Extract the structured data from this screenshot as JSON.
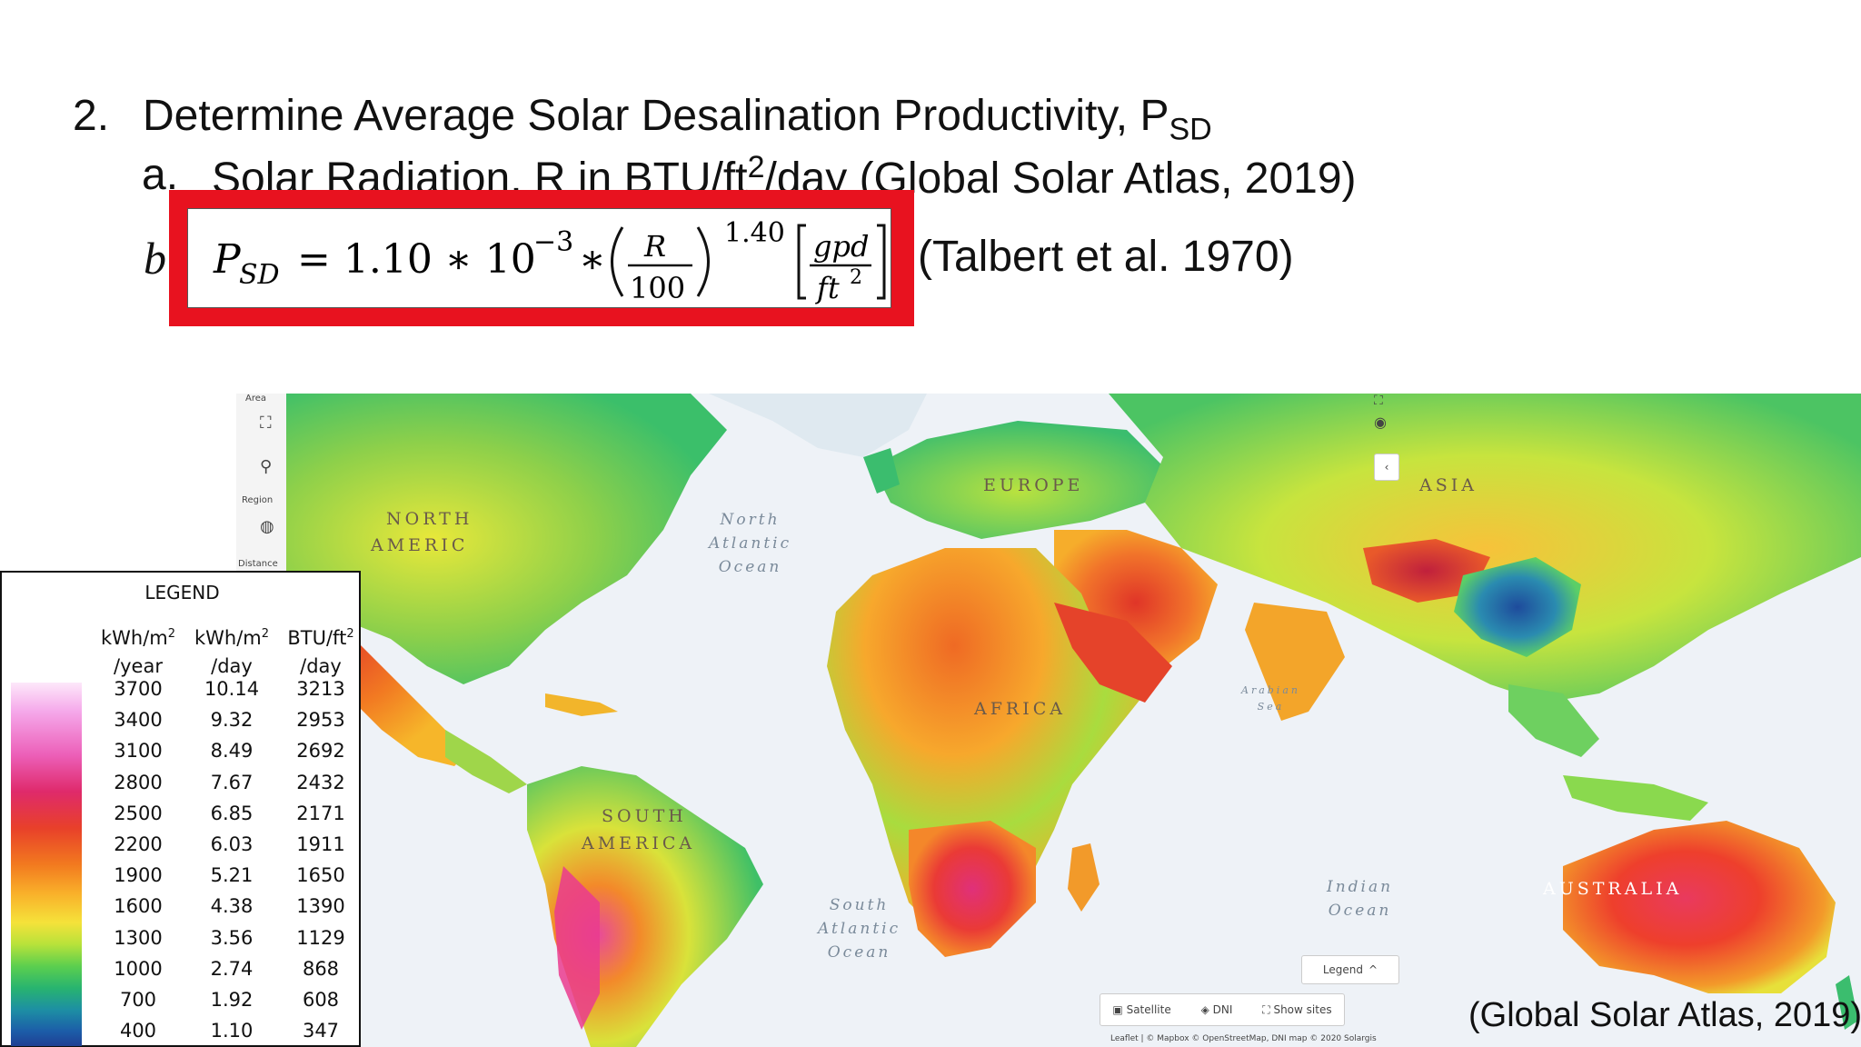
{
  "slide": {
    "item_num": "2.",
    "item_text": "Determine Average Solar Desalination Productivity, P",
    "item_sub": "SD",
    "sub_a_letter": "a.",
    "sub_a_text_1": "Solar Radiation, R in BTU/ft",
    "sub_a_sup": "2",
    "sub_a_text_2": "/day (Global Solar Atlas, 2019)",
    "sub_b_letter": "b",
    "formula_citation": "(Talbert et al. 1970)",
    "map_citation": "(Global Solar Atlas, 2019)"
  },
  "formula": {
    "lhs": "P",
    "lhs_sub": "SD",
    "coef": "= 1.10 ∗ 10",
    "exp": "−3",
    "times": "∗",
    "num": "R",
    "den": "100",
    "power": "1.40",
    "unit_num": "gpd",
    "unit_den": "ft",
    "unit_den_sup": "2"
  },
  "legend": {
    "title": "LEGEND",
    "col1_l1": "kWh/m",
    "col1_sup": "2",
    "col1_l2": "/year",
    "col2_l1": "kWh/m",
    "col2_sup": "2",
    "col2_l2": "/day",
    "col3_l1": "BTU/ft",
    "col3_sup": "2",
    "col3_l2": "/day",
    "rows": [
      {
        "year": "3700",
        "day": "10.14",
        "btu": "3213"
      },
      {
        "year": "3400",
        "day": "9.32",
        "btu": "2953"
      },
      {
        "year": "3100",
        "day": "8.49",
        "btu": "2692"
      },
      {
        "year": "2800",
        "day": "7.67",
        "btu": "2432"
      },
      {
        "year": "2500",
        "day": "6.85",
        "btu": "2171"
      },
      {
        "year": "2200",
        "day": "6.03",
        "btu": "1911"
      },
      {
        "year": "1900",
        "day": "5.21",
        "btu": "1650"
      },
      {
        "year": "1600",
        "day": "4.38",
        "btu": "1390"
      },
      {
        "year": "1300",
        "day": "3.56",
        "btu": "1129"
      },
      {
        "year": "1000",
        "day": "2.74",
        "btu": "868"
      },
      {
        "year": "700",
        "day": "1.92",
        "btu": "608"
      },
      {
        "year": "400",
        "day": "1.10",
        "btu": "347"
      }
    ]
  },
  "map": {
    "labels": {
      "north_america_1": "NORTH",
      "north_america_2": "AMERIC",
      "europe": "EUROPE",
      "asia": "ASIA",
      "africa": "AFRICA",
      "south_america_1": "SOUTH",
      "south_america_2": "AMERICA",
      "australia": "AUSTRALIA",
      "north_atlantic": "North\nAtlantic\nOcean",
      "south_atlantic": "South\nAtlantic\nOcean",
      "indian_ocean": "Indian\nOcean",
      "arabian_sea": "Arabian\nSea"
    },
    "sidebar": {
      "area": "Area",
      "region": "Region",
      "distance": "Distance"
    },
    "buttons": {
      "legend": "Legend",
      "satellite": "Satellite",
      "dni": "DNI",
      "show_sites": "Show sites"
    },
    "attribution": "Leaflet | © Mapbox © OpenStreetMap, DNI map © 2020 Solargis"
  }
}
